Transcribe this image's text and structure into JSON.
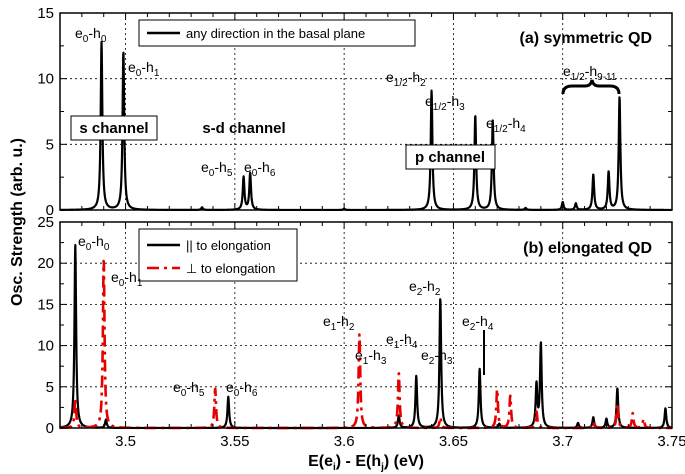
{
  "chart_data": [
    {
      "type": "line",
      "panel": "(a) symmetric QD",
      "title": "(a) symmetric QD",
      "xlim": [
        3.47,
        3.75
      ],
      "ylim": [
        0,
        15
      ],
      "yticks": [
        0,
        5,
        10,
        15
      ],
      "grid": true,
      "legend_position": "top-center",
      "series": [
        {
          "name": "any direction in the basal plane",
          "color": "#000000",
          "dash": "solid",
          "peaks": [
            {
              "x": 3.489,
              "y": 12.8
            },
            {
              "x": 3.499,
              "y": 12.1
            },
            {
              "x": 3.535,
              "y": 0.2
            },
            {
              "x": 3.554,
              "y": 2.5
            },
            {
              "x": 3.557,
              "y": 2.8
            },
            {
              "x": 3.6,
              "y": 0.1
            },
            {
              "x": 3.64,
              "y": 9.1
            },
            {
              "x": 3.66,
              "y": 7.2
            },
            {
              "x": 3.668,
              "y": 6.8
            },
            {
              "x": 3.683,
              "y": 0.15
            },
            {
              "x": 3.7,
              "y": 0.6
            },
            {
              "x": 3.706,
              "y": 0.5
            },
            {
              "x": 3.714,
              "y": 2.7
            },
            {
              "x": 3.721,
              "y": 2.9
            },
            {
              "x": 3.726,
              "y": 8.6
            }
          ]
        }
      ],
      "annotations": [
        {
          "main": "e",
          "sub": "0",
          "mid": "-h",
          "sub2": "0"
        },
        {
          "main": "e",
          "sub": "0",
          "mid": "-h",
          "sub2": "1"
        },
        {
          "main": "e",
          "sub": "0",
          "mid": "-h",
          "sub2": "5"
        },
        {
          "main": "e",
          "sub": "0",
          "mid": "-h",
          "sub2": "6"
        },
        {
          "main": "e",
          "sub": "1/2",
          "mid": "-h",
          "sub2": "2"
        },
        {
          "main": "e",
          "sub": "1/2",
          "mid": "-h",
          "sub2": "3"
        },
        {
          "main": "e",
          "sub": "1/2",
          "mid": "-h",
          "sub2": "4"
        },
        {
          "main": "e",
          "sub": "1/2",
          "mid": "-h",
          "sub2": "9-11"
        }
      ],
      "channels": [
        "s channel",
        "s-d channel",
        "p channel"
      ]
    },
    {
      "type": "line",
      "panel": "(b) elongated QD",
      "title": "(b) elongated QD",
      "xlim": [
        3.47,
        3.75
      ],
      "ylim": [
        0,
        25
      ],
      "yticks": [
        0,
        5,
        10,
        15,
        20,
        25
      ],
      "xticks": [
        3.5,
        3.55,
        3.6,
        3.65,
        3.7,
        3.75
      ],
      "grid": true,
      "legend_position": "top-left",
      "series": [
        {
          "name": "|| to elongation",
          "color": "#000000",
          "dash": "solid",
          "peaks": [
            {
              "x": 3.477,
              "y": 22.2
            },
            {
              "x": 3.491,
              "y": 1.0
            },
            {
              "x": 3.547,
              "y": 3.8
            },
            {
              "x": 3.625,
              "y": 1.5
            },
            {
              "x": 3.633,
              "y": 6.3
            },
            {
              "x": 3.644,
              "y": 15.8
            },
            {
              "x": 3.662,
              "y": 7.2
            },
            {
              "x": 3.671,
              "y": 0.5
            },
            {
              "x": 3.688,
              "y": 5.2
            },
            {
              "x": 3.69,
              "y": 10.2
            },
            {
              "x": 3.707,
              "y": 0.6
            },
            {
              "x": 3.714,
              "y": 1.3
            },
            {
              "x": 3.72,
              "y": 1.1
            },
            {
              "x": 3.725,
              "y": 4.8
            },
            {
              "x": 3.747,
              "y": 2.4
            }
          ]
        },
        {
          "name": "⊥ to elongation",
          "color": "#e60000",
          "dash": "dashed",
          "peaks": [
            {
              "x": 3.477,
              "y": 3.6
            },
            {
              "x": 3.49,
              "y": 20.5
            },
            {
              "x": 3.541,
              "y": 4.8
            },
            {
              "x": 3.607,
              "y": 11.4
            },
            {
              "x": 3.625,
              "y": 6.7
            },
            {
              "x": 3.644,
              "y": 1.3
            },
            {
              "x": 3.67,
              "y": 4.7
            },
            {
              "x": 3.676,
              "y": 3.9
            },
            {
              "x": 3.688,
              "y": 2.0
            },
            {
              "x": 3.714,
              "y": 0.7
            },
            {
              "x": 3.725,
              "y": 3.0
            },
            {
              "x": 3.732,
              "y": 1.8
            },
            {
              "x": 3.737,
              "y": 1.1
            }
          ]
        }
      ],
      "annotations": [
        {
          "main": "e",
          "sub": "0",
          "mid": "-h",
          "sub2": "0"
        },
        {
          "main": "e",
          "sub": "0",
          "mid": "-h",
          "sub2": "1"
        },
        {
          "main": "e",
          "sub": "0",
          "mid": "-h",
          "sub2": "5"
        },
        {
          "main": "e",
          "sub": "0",
          "mid": "-h",
          "sub2": "6"
        },
        {
          "main": "e",
          "sub": "1",
          "mid": "-h",
          "sub2": "2"
        },
        {
          "main": "e",
          "sub": "1",
          "mid": "-h",
          "sub2": "3"
        },
        {
          "main": "e",
          "sub": "1",
          "mid": "-h",
          "sub2": "4"
        },
        {
          "main": "e",
          "sub": "2",
          "mid": "-h",
          "sub2": "2"
        },
        {
          "main": "e",
          "sub": "2",
          "mid": "-h",
          "sub2": "3"
        },
        {
          "main": "e",
          "sub": "2",
          "mid": "-h",
          "sub2": "4"
        }
      ]
    }
  ],
  "axes": {
    "xlabel": {
      "main": "E(e",
      "sub1": "i",
      "mid": ") - E(h",
      "sub2": "j",
      "end": ") (eV)"
    },
    "ylabel": "Osc. Strength (arb. u.)"
  }
}
